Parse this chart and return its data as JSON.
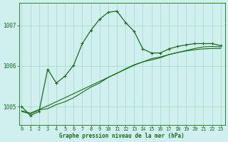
{
  "title": "Graphe pression niveau de la mer (hPa)",
  "bg_color": "#cff0ee",
  "grid_color": "#a8d8c8",
  "line_color": "#1a6b1a",
  "x_ticks": [
    0,
    1,
    2,
    3,
    4,
    5,
    6,
    7,
    8,
    9,
    10,
    11,
    12,
    13,
    14,
    15,
    16,
    17,
    18,
    19,
    20,
    21,
    22,
    23
  ],
  "y_ticks": [
    1005,
    1006,
    1007
  ],
  "ylim": [
    1004.55,
    1007.55
  ],
  "xlim": [
    -0.3,
    23.5
  ],
  "series1_x": [
    0,
    1,
    2,
    3,
    4,
    5,
    6,
    7,
    8,
    9,
    10,
    11,
    12,
    13,
    14,
    15,
    16,
    17,
    18,
    19,
    20,
    21,
    22,
    23
  ],
  "series1_y": [
    1005.0,
    1004.78,
    1004.88,
    1005.92,
    1005.58,
    1005.75,
    1006.02,
    1006.55,
    1006.88,
    1007.15,
    1007.32,
    1007.35,
    1007.07,
    1006.85,
    1006.42,
    1006.32,
    1006.32,
    1006.42,
    1006.48,
    1006.52,
    1006.55,
    1006.55,
    1006.55,
    1006.5
  ],
  "series2_x": [
    0,
    1,
    2,
    3,
    4,
    5,
    6,
    7,
    8,
    9,
    10,
    11,
    12,
    13,
    14,
    15,
    16,
    17,
    18,
    19,
    20,
    21,
    22,
    23
  ],
  "series2_y": [
    1004.88,
    1004.82,
    1004.92,
    1004.95,
    1005.05,
    1005.12,
    1005.22,
    1005.35,
    1005.48,
    1005.58,
    1005.72,
    1005.82,
    1005.92,
    1006.02,
    1006.1,
    1006.18,
    1006.22,
    1006.28,
    1006.33,
    1006.37,
    1006.4,
    1006.42,
    1006.43,
    1006.43
  ],
  "series3_x": [
    0,
    1,
    2,
    3,
    4,
    5,
    6,
    7,
    8,
    9,
    10,
    11,
    12,
    13,
    14,
    15,
    16,
    17,
    18,
    19,
    20,
    21,
    22,
    23
  ],
  "series3_y": [
    1004.9,
    1004.84,
    1004.93,
    1005.02,
    1005.12,
    1005.22,
    1005.32,
    1005.42,
    1005.52,
    1005.62,
    1005.72,
    1005.82,
    1005.93,
    1006.03,
    1006.1,
    1006.15,
    1006.2,
    1006.28,
    1006.33,
    1006.38,
    1006.43,
    1006.47,
    1006.48,
    1006.47
  ],
  "marker_x1": [
    0,
    1,
    2,
    3,
    4,
    5,
    6,
    7,
    8,
    9,
    10,
    11,
    12,
    13,
    14,
    15,
    16,
    17,
    18,
    19,
    20,
    21,
    22,
    23
  ],
  "marker_y1": [
    1005.0,
    1004.78,
    1004.88,
    1005.92,
    1005.58,
    1005.75,
    1006.02,
    1006.55,
    1006.88,
    1007.15,
    1007.32,
    1007.35,
    1007.07,
    1006.85,
    1006.42,
    1006.32,
    1006.32,
    1006.42,
    1006.48,
    1006.52,
    1006.55,
    1006.55,
    1006.55,
    1006.5
  ],
  "marker_x2": [
    0,
    1,
    2,
    3,
    14,
    15,
    16,
    17,
    18,
    19,
    20,
    21,
    22,
    23
  ],
  "marker_y2": [
    1004.88,
    1004.82,
    1004.92,
    1004.95,
    1006.1,
    1006.18,
    1006.22,
    1006.28,
    1006.33,
    1006.37,
    1006.4,
    1006.42,
    1006.43,
    1006.43
  ]
}
